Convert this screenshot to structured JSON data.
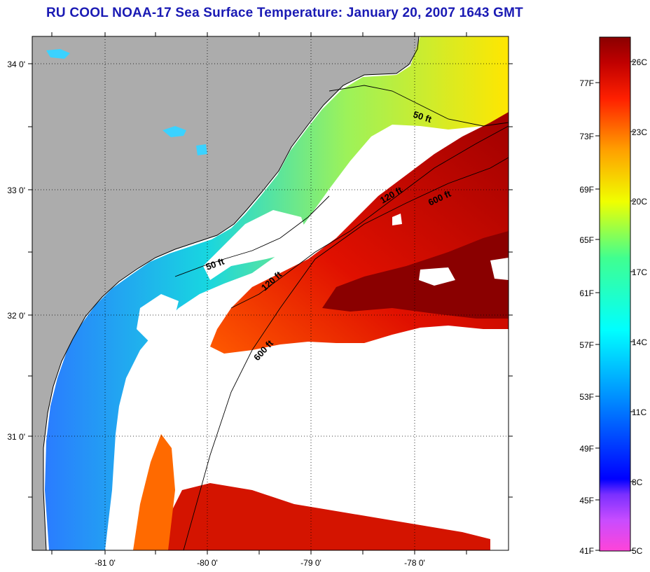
{
  "title": "RU COOL  NOAA-17  Sea Surface Temperature:  January 20, 2007 1643 GMT",
  "map": {
    "lat_labels": [
      "34 0'",
      "33 0'",
      "32 0'",
      "31 0'"
    ],
    "lon_labels": [
      "-81 0'",
      "-80 0'",
      "-79 0'",
      "-78 0'"
    ],
    "contours": [
      {
        "label": "50 ft",
        "name": "contour-50ft-north"
      },
      {
        "label": "120 ft",
        "name": "contour-120ft-north"
      },
      {
        "label": "600 ft",
        "name": "contour-600ft-north"
      },
      {
        "label": "50 ft",
        "name": "contour-50ft-south"
      },
      {
        "label": "120 ft",
        "name": "contour-120ft-south"
      },
      {
        "label": "600 ft",
        "name": "contour-600ft-south"
      }
    ],
    "colors": {
      "land": "#acacac",
      "cloud": "#ffffff",
      "warm": "#b40000",
      "hot": "#8a0000"
    }
  },
  "colorbar": {
    "fahrenheit": [
      "77F",
      "73F",
      "69F",
      "65F",
      "61F",
      "57F",
      "53F",
      "49F",
      "45F",
      "41F"
    ],
    "celsius": [
      "26C",
      "23C",
      "20C",
      "17C",
      "14C",
      "11C",
      "8C",
      "5C"
    ]
  }
}
